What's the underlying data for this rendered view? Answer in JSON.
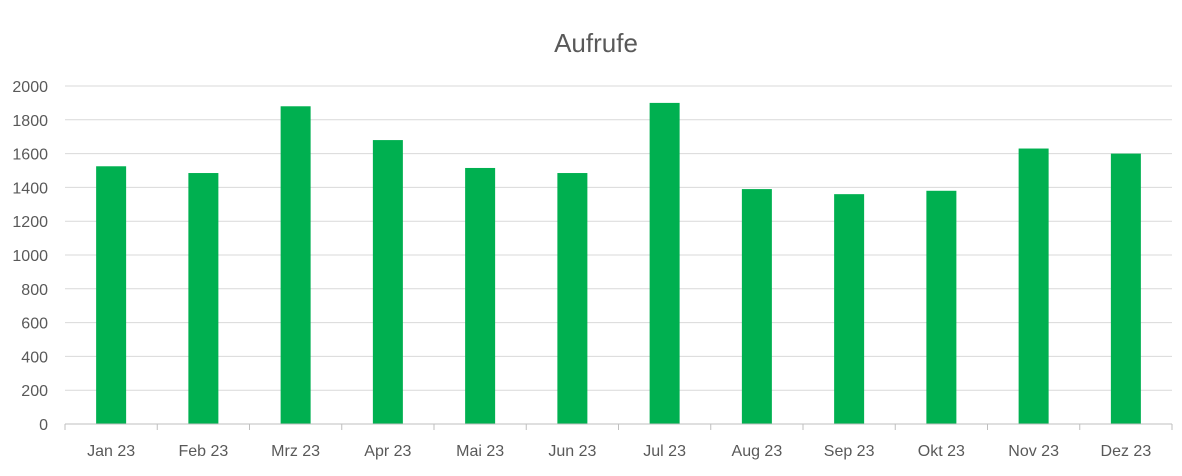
{
  "chart_data": {
    "type": "bar",
    "title": "Aufrufe",
    "xlabel": "",
    "ylabel": "",
    "categories": [
      "Jan 23",
      "Feb 23",
      "Mrz 23",
      "Apr 23",
      "Mai 23",
      "Jun 23",
      "Jul 23",
      "Aug 23",
      "Sep 23",
      "Okt 23",
      "Nov 23",
      "Dez 23"
    ],
    "series": [
      {
        "values": [
          1525,
          1485,
          1880,
          1680,
          1515,
          1485,
          1900,
          1390,
          1360,
          1380,
          1630,
          1600
        ],
        "color": "#00b050"
      }
    ],
    "ylim": [
      0,
      2000
    ],
    "yticks": [
      0,
      200,
      400,
      600,
      800,
      1000,
      1200,
      1400,
      1600,
      1800,
      2000
    ],
    "grid": true,
    "legend": "none"
  }
}
